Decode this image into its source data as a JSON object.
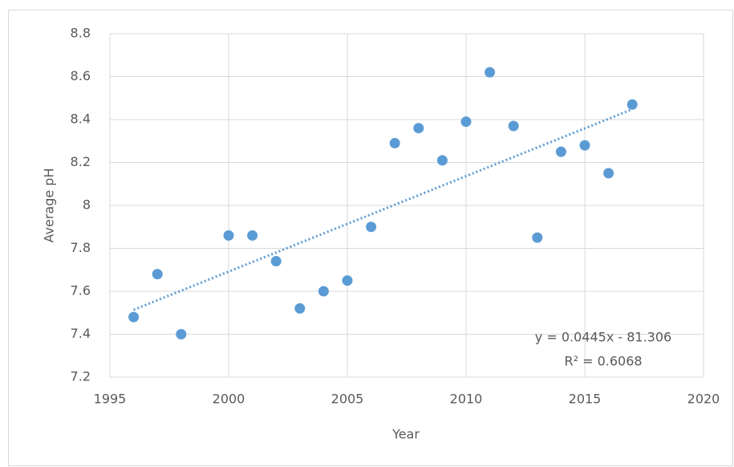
{
  "chart_data": {
    "type": "scatter",
    "x_label": "Year",
    "y_label": "Average pH",
    "x": [
      1996,
      1997,
      1998,
      2000,
      2001,
      2002,
      2003,
      2004,
      2005,
      2006,
      2007,
      2008,
      2009,
      2010,
      2011,
      2012,
      2013,
      2014,
      2015,
      2016,
      2017
    ],
    "values": [
      7.48,
      7.68,
      7.4,
      7.86,
      7.86,
      7.74,
      7.52,
      7.6,
      7.65,
      7.9,
      8.29,
      8.36,
      8.21,
      8.39,
      8.62,
      8.37,
      7.85,
      8.25,
      8.28,
      8.15,
      8.47
    ],
    "color": "#5b9bd5",
    "xlim": [
      1995,
      2020
    ],
    "xticks": [
      1995,
      2000,
      2005,
      2010,
      2015,
      2020
    ],
    "ylim": [
      7.2,
      8.8
    ],
    "yticks": [
      7.2,
      7.4,
      7.6,
      7.8,
      8,
      8.2,
      8.4,
      8.6,
      8.8
    ],
    "grid": true,
    "trendline": {
      "type": "linear",
      "equation": "y = 0.0445x - 81.306",
      "r_squared": "R² = 0.6068"
    }
  }
}
